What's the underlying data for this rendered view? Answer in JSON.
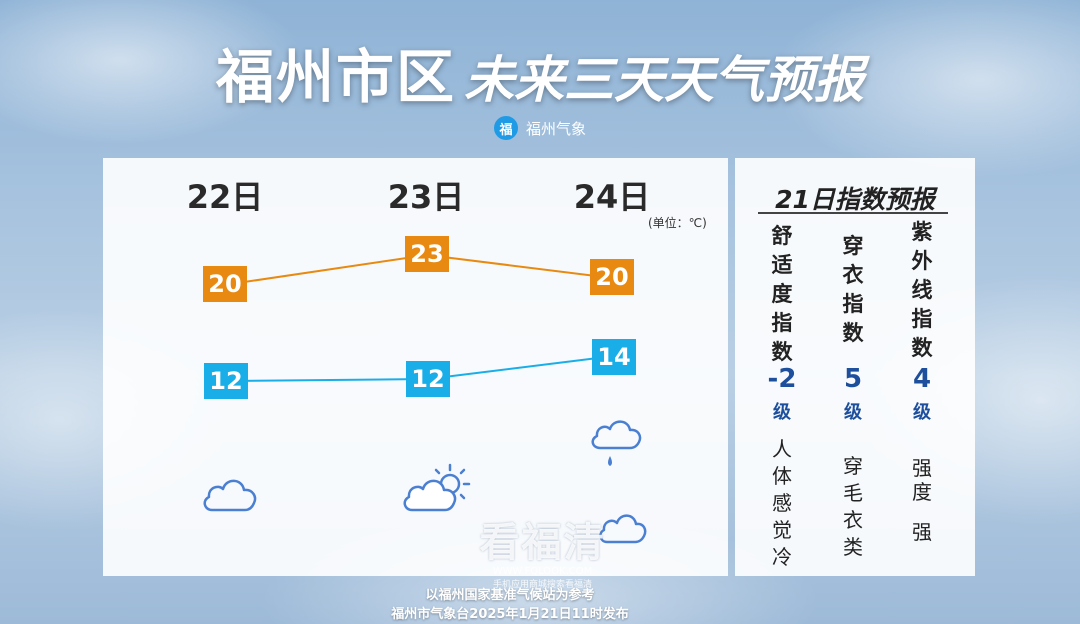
{
  "header": {
    "city": "福州市区",
    "subtitle": "未来三天天气预报",
    "brand_name": "福州气象",
    "brand_logo_glyph": "福"
  },
  "forecast": {
    "unit": "(单位：℃)",
    "days": [
      {
        "label": "22日",
        "high": "20",
        "low": "12",
        "icon": "cloudy-icon"
      },
      {
        "label": "23日",
        "high": "23",
        "low": "12",
        "icon": "partly-cloudy-sun-icon"
      },
      {
        "label": "24日",
        "high": "20",
        "low": "14",
        "icon": "cloudy-to-rain-icon"
      }
    ],
    "high_color": "#e88a12",
    "low_color": "#19aee8",
    "icon_color": "#4a7fd1"
  },
  "indices": {
    "title": "21日指数预报",
    "items": [
      {
        "name": [
          "舒",
          "适",
          "度",
          "指",
          "数"
        ],
        "value": "-2",
        "level": "级",
        "desc": [
          "人",
          "体",
          "感",
          "觉",
          "冷"
        ]
      },
      {
        "name": [
          "穿",
          "衣",
          "指",
          "数"
        ],
        "value": "5",
        "level": "级",
        "desc": [
          "穿",
          "毛",
          "衣",
          "类"
        ]
      },
      {
        "name": [
          "紫",
          "外",
          "线",
          "指",
          "数"
        ],
        "value": "4",
        "level": "级",
        "desc": [
          "强",
          "度",
          "",
          "强"
        ]
      }
    ]
  },
  "watermark": {
    "text": "看福清",
    "url": "WWW.FQLOOK.COM",
    "tip": "手机应用商城搜索看福清"
  },
  "footer": {
    "line1": "以福州国家基准气候站为参考",
    "line2": "福州市气象台2025年1月21日11时发布"
  }
}
